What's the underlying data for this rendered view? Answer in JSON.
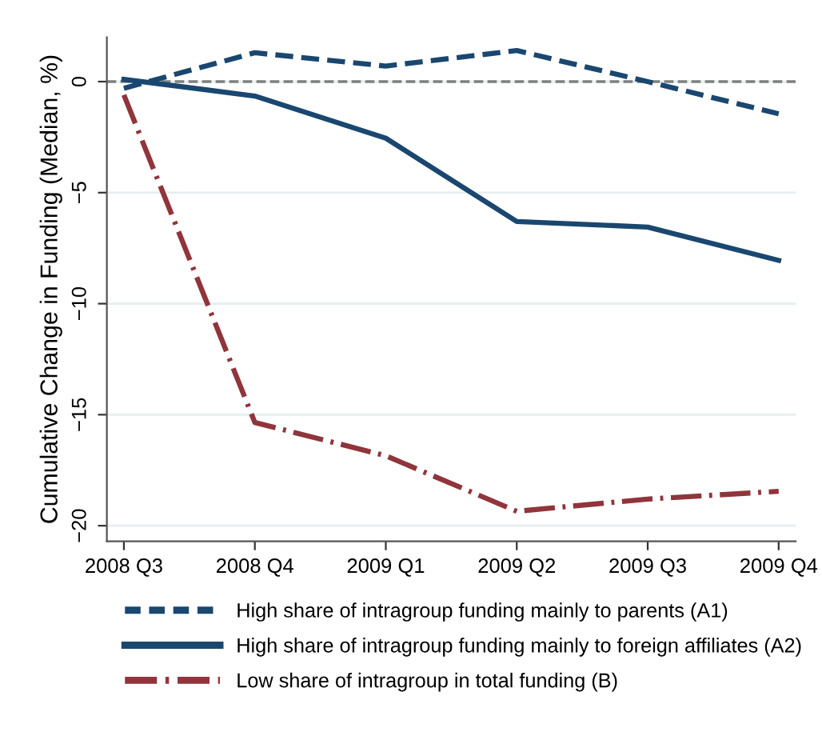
{
  "chart_data": {
    "type": "line",
    "ylabel": "Cumulative Change in Funding (Median, %)",
    "categories": [
      "2008 Q3",
      "2008 Q4",
      "2009 Q1",
      "2009 Q2",
      "2009 Q3",
      "2009 Q4"
    ],
    "ylim": [
      -20.7,
      2.0
    ],
    "yticks": [
      {
        "value": -20,
        "label": "−20"
      },
      {
        "value": -15,
        "label": "−15"
      },
      {
        "value": -10,
        "label": "−10"
      },
      {
        "value": -5,
        "label": "−5"
      },
      0
    ],
    "grid": "y",
    "legend": "bottom",
    "marker": "none",
    "ref_lines": [
      {
        "axis": "y",
        "value": 0,
        "color": "#808080",
        "line_style": "dashed"
      }
    ],
    "series": [
      {
        "name": "High share of intragroup funding mainly to parents (A1)",
        "color": "#1a476f",
        "line_style": "dashed",
        "values": [
          -0.3,
          1.3,
          0.7,
          1.4,
          0.0,
          -1.45
        ]
      },
      {
        "name": "High share of intragroup funding mainly to foreign affiliates (A2)",
        "color": "#1a476f",
        "line_style": "solid",
        "values": [
          0.1,
          -0.65,
          -2.55,
          -6.3,
          -6.55,
          -8.05
        ]
      },
      {
        "name": "Low share of intragroup in total funding (B)",
        "color": "#90353b",
        "line_style": "dashdot",
        "values": [
          -0.6,
          -15.35,
          -16.85,
          -19.35,
          -18.8,
          -18.45
        ]
      }
    ]
  }
}
